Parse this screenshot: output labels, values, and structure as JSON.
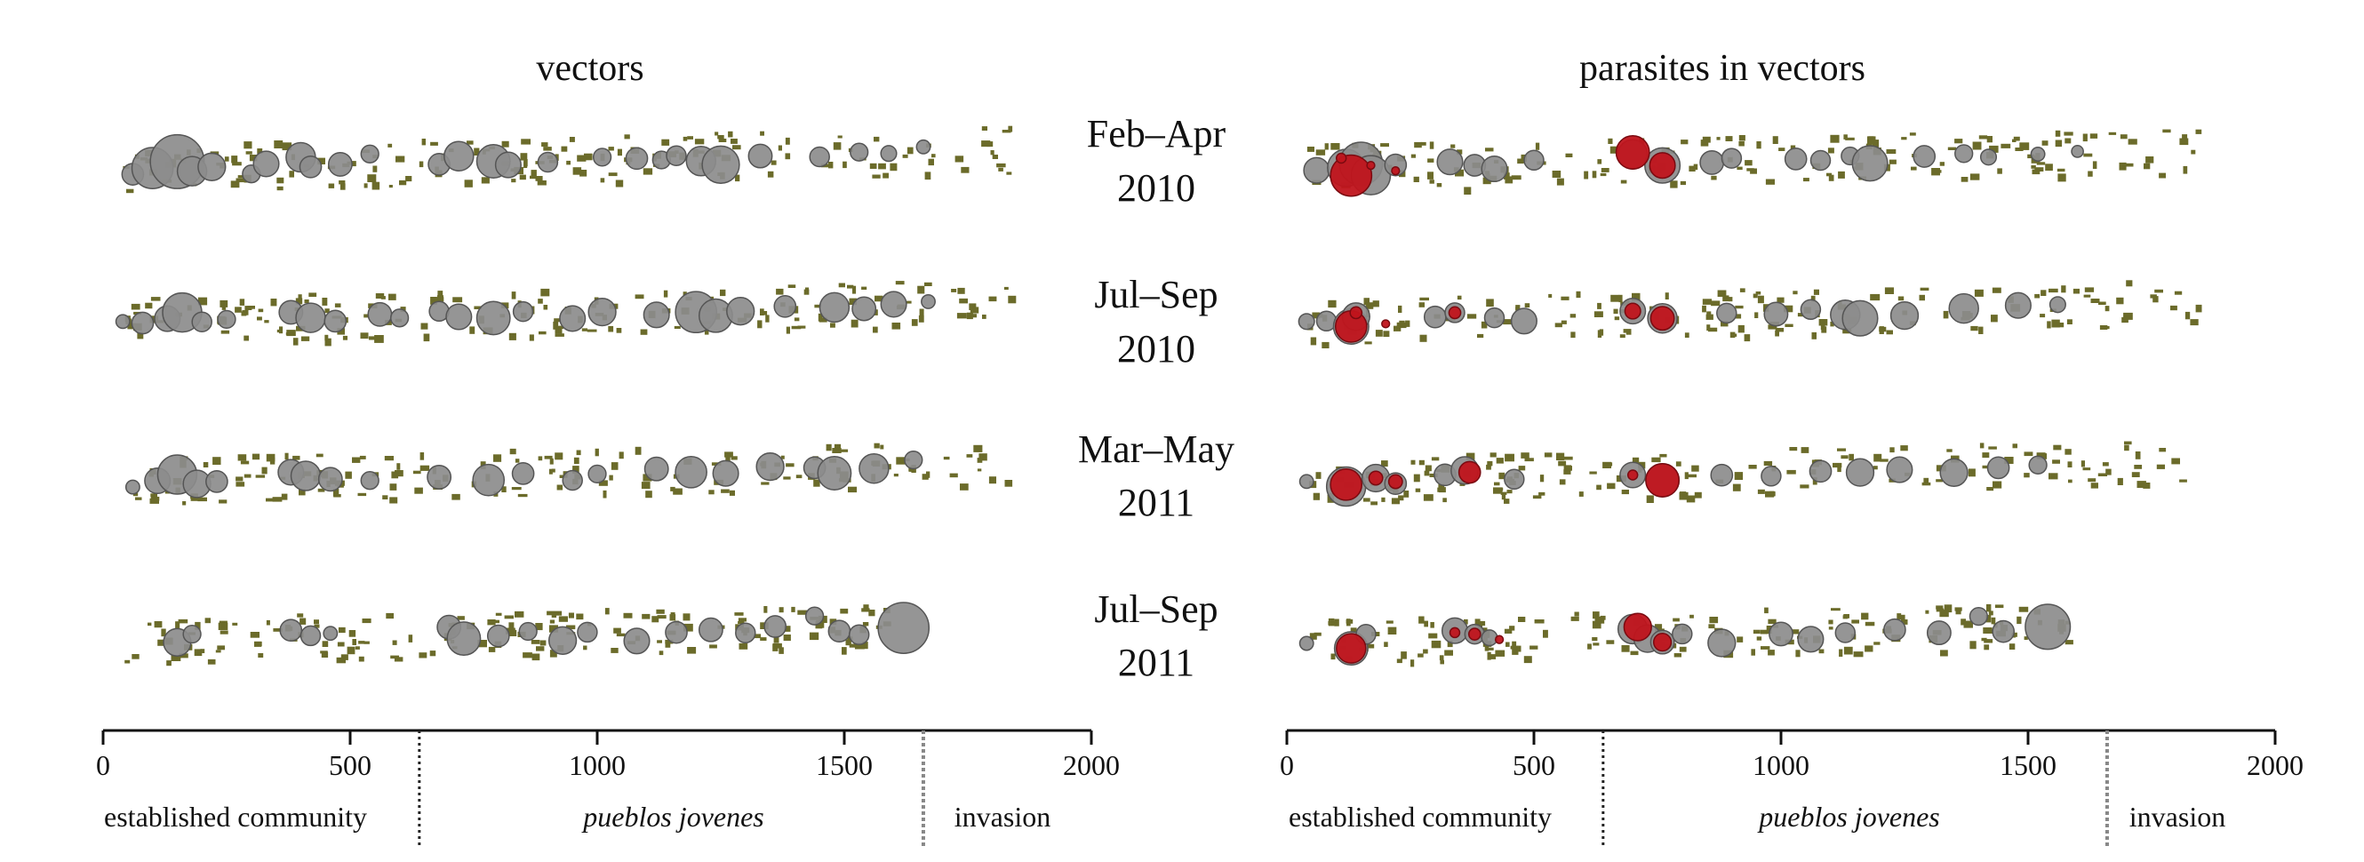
{
  "chart_data": {
    "type": "scatter",
    "description_of_marks": "bubble strip maps of households along a distance axis; grey circles = vectors, red circles = parasites in vectors, olive specks = households",
    "panels": [
      {
        "title": "vectors",
        "marker_color": "#8c8c8c"
      },
      {
        "title": "parasites in vectors",
        "marker_color": "#c0141c"
      }
    ],
    "periods": [
      {
        "line1": "Feb–Apr",
        "line2": "2010"
      },
      {
        "line1": "Jul–Sep",
        "line2": "2010"
      },
      {
        "line1": "Mar–May",
        "line2": "2011"
      },
      {
        "line1": "Jul–Sep",
        "line2": "2011"
      }
    ],
    "x_axis": {
      "ticks": [
        "0",
        "500",
        "1000",
        "1500",
        "2000"
      ],
      "range": [
        0,
        2000
      ]
    },
    "zones": [
      {
        "label": "established community",
        "italic": false
      },
      {
        "label": "pueblos jovenes",
        "italic": true
      },
      {
        "label": "invasion",
        "italic": false
      }
    ],
    "zone_boundaries": [
      640,
      1660
    ],
    "households_color": "#6b6b2a",
    "vectors": [
      [
        [
          60,
          0.4,
          22
        ],
        [
          100,
          0.1,
          42
        ],
        [
          150,
          -0.2,
          55
        ],
        [
          180,
          0.3,
          30
        ],
        [
          220,
          0.1,
          28
        ],
        [
          300,
          0.5,
          18
        ],
        [
          330,
          0.0,
          26
        ],
        [
          400,
          -0.3,
          30
        ],
        [
          420,
          0.2,
          22
        ],
        [
          480,
          0.1,
          24
        ],
        [
          540,
          -0.4,
          18
        ],
        [
          680,
          0.2,
          22
        ],
        [
          720,
          -0.2,
          30
        ],
        [
          790,
          0.1,
          34
        ],
        [
          820,
          0.3,
          26
        ],
        [
          900,
          0.2,
          20
        ],
        [
          1010,
          0.0,
          18
        ],
        [
          1080,
          0.1,
          22
        ],
        [
          1130,
          0.2,
          18
        ],
        [
          1160,
          0.0,
          20
        ],
        [
          1210,
          0.3,
          30
        ],
        [
          1250,
          0.5,
          38
        ],
        [
          1330,
          0.1,
          24
        ],
        [
          1450,
          0.2,
          20
        ],
        [
          1530,
          0.0,
          18
        ],
        [
          1590,
          0.1,
          16
        ],
        [
          1660,
          -0.2,
          14
        ]
      ],
      [
        [
          40,
          0.1,
          14
        ],
        [
          80,
          0.2,
          22
        ],
        [
          130,
          0.0,
          26
        ],
        [
          160,
          -0.3,
          40
        ],
        [
          200,
          0.2,
          20
        ],
        [
          250,
          0.1,
          18
        ],
        [
          380,
          -0.2,
          24
        ],
        [
          420,
          0.1,
          30
        ],
        [
          470,
          0.3,
          22
        ],
        [
          560,
          0.0,
          24
        ],
        [
          600,
          0.2,
          18
        ],
        [
          680,
          -0.1,
          20
        ],
        [
          720,
          0.2,
          26
        ],
        [
          790,
          0.3,
          34
        ],
        [
          850,
          0.0,
          20
        ],
        [
          950,
          0.4,
          26
        ],
        [
          1010,
          0.1,
          28
        ],
        [
          1120,
          0.3,
          26
        ],
        [
          1200,
          0.2,
          42
        ],
        [
          1240,
          0.4,
          34
        ],
        [
          1290,
          0.2,
          28
        ],
        [
          1380,
          0.0,
          22
        ],
        [
          1480,
          0.1,
          30
        ],
        [
          1540,
          0.2,
          24
        ],
        [
          1600,
          0.0,
          26
        ],
        [
          1670,
          -0.1,
          14
        ]
      ],
      [
        [
          60,
          0.4,
          14
        ],
        [
          110,
          0.1,
          26
        ],
        [
          150,
          -0.2,
          40
        ],
        [
          190,
          0.3,
          28
        ],
        [
          230,
          0.2,
          22
        ],
        [
          380,
          -0.2,
          26
        ],
        [
          410,
          0.0,
          30
        ],
        [
          460,
          0.2,
          24
        ],
        [
          540,
          0.3,
          18
        ],
        [
          680,
          0.2,
          24
        ],
        [
          780,
          0.4,
          32
        ],
        [
          850,
          0.1,
          22
        ],
        [
          950,
          0.5,
          20
        ],
        [
          1000,
          0.2,
          18
        ],
        [
          1120,
          0.0,
          24
        ],
        [
          1190,
          0.2,
          32
        ],
        [
          1260,
          0.3,
          26
        ],
        [
          1350,
          0.0,
          28
        ],
        [
          1440,
          0.1,
          22
        ],
        [
          1480,
          0.4,
          34
        ],
        [
          1560,
          0.2,
          30
        ],
        [
          1640,
          -0.2,
          18
        ]
      ],
      [
        [
          150,
          0.2,
          28
        ],
        [
          180,
          -0.2,
          18
        ],
        [
          380,
          -0.3,
          22
        ],
        [
          420,
          0.0,
          20
        ],
        [
          460,
          -0.1,
          14
        ],
        [
          700,
          -0.3,
          24
        ],
        [
          730,
          0.3,
          34
        ],
        [
          800,
          0.2,
          22
        ],
        [
          860,
          0.0,
          18
        ],
        [
          930,
          0.5,
          28
        ],
        [
          980,
          0.1,
          20
        ],
        [
          1080,
          0.6,
          26
        ],
        [
          1160,
          0.2,
          22
        ],
        [
          1230,
          0.1,
          24
        ],
        [
          1300,
          0.3,
          20
        ],
        [
          1360,
          0.0,
          22
        ],
        [
          1440,
          -0.5,
          18
        ],
        [
          1490,
          0.3,
          22
        ],
        [
          1530,
          0.5,
          20
        ],
        [
          1620,
          0.2,
          52
        ]
      ]
    ],
    "parasites": [
      [
        [
          60,
          0.2,
          26
        ],
        [
          120,
          0.1,
          38
        ],
        [
          150,
          -0.1,
          44
        ],
        [
          170,
          0.5,
          40
        ],
        [
          220,
          0.0,
          22
        ],
        [
          330,
          -0.1,
          26
        ],
        [
          380,
          0.1,
          22
        ],
        [
          420,
          0.3,
          26
        ],
        [
          500,
          -0.1,
          20
        ],
        [
          700,
          -0.3,
          30
        ],
        [
          760,
          0.3,
          36
        ],
        [
          860,
          0.2,
          24
        ],
        [
          900,
          0.0,
          20
        ],
        [
          1030,
          0.1,
          22
        ],
        [
          1080,
          0.2,
          20
        ],
        [
          1140,
          0.0,
          18
        ],
        [
          1180,
          0.4,
          36
        ],
        [
          1290,
          0.1,
          22
        ],
        [
          1370,
          0.0,
          18
        ],
        [
          1420,
          0.2,
          16
        ],
        [
          1520,
          0.1,
          14
        ],
        [
          1600,
          0.0,
          12
        ]
      ],
      [
        [
          40,
          0.1,
          16
        ],
        [
          80,
          0.1,
          20
        ],
        [
          130,
          0.4,
          36
        ],
        [
          140,
          -0.1,
          28
        ],
        [
          300,
          0.0,
          22
        ],
        [
          340,
          -0.2,
          20
        ],
        [
          420,
          0.1,
          20
        ],
        [
          480,
          0.3,
          26
        ],
        [
          700,
          -0.1,
          26
        ],
        [
          760,
          0.3,
          30
        ],
        [
          890,
          0.1,
          20
        ],
        [
          990,
          0.2,
          24
        ],
        [
          1060,
          0.0,
          20
        ],
        [
          1130,
          0.3,
          30
        ],
        [
          1160,
          0.5,
          36
        ],
        [
          1250,
          0.4,
          28
        ],
        [
          1370,
          0.1,
          30
        ],
        [
          1480,
          0.0,
          26
        ],
        [
          1560,
          0.0,
          16
        ]
      ],
      [
        [
          40,
          0.1,
          14
        ],
        [
          120,
          0.4,
          40
        ],
        [
          180,
          0.0,
          28
        ],
        [
          220,
          0.3,
          22
        ],
        [
          320,
          -0.1,
          22
        ],
        [
          360,
          -0.3,
          28
        ],
        [
          460,
          0.2,
          20
        ],
        [
          700,
          0.1,
          26
        ],
        [
          760,
          0.4,
          34
        ],
        [
          880,
          0.2,
          22
        ],
        [
          980,
          0.3,
          20
        ],
        [
          1080,
          0.1,
          22
        ],
        [
          1160,
          0.2,
          28
        ],
        [
          1240,
          0.1,
          26
        ],
        [
          1350,
          0.3,
          28
        ],
        [
          1440,
          0.1,
          22
        ],
        [
          1520,
          0.0,
          18
        ]
      ],
      [
        [
          40,
          0.2,
          14
        ],
        [
          130,
          0.5,
          34
        ],
        [
          160,
          -0.2,
          20
        ],
        [
          340,
          -0.3,
          26
        ],
        [
          380,
          -0.1,
          20
        ],
        [
          410,
          0.1,
          16
        ],
        [
          700,
          -0.2,
          30
        ],
        [
          730,
          0.3,
          28
        ],
        [
          760,
          0.5,
          24
        ],
        [
          800,
          0.1,
          20
        ],
        [
          880,
          0.6,
          28
        ],
        [
          1000,
          0.2,
          24
        ],
        [
          1060,
          0.5,
          26
        ],
        [
          1130,
          0.2,
          20
        ],
        [
          1230,
          0.1,
          22
        ],
        [
          1320,
          0.3,
          24
        ],
        [
          1400,
          -0.5,
          18
        ],
        [
          1450,
          0.3,
          22
        ],
        [
          1540,
          0.1,
          46
        ]
      ]
    ],
    "red_overlays": [
      [
        [
          130,
          0.5,
          42
        ],
        [
          110,
          -0.4,
          10
        ],
        [
          700,
          -0.4,
          34
        ],
        [
          760,
          0.3,
          26
        ],
        [
          170,
          0.0,
          8
        ],
        [
          220,
          0.3,
          8
        ]
      ],
      [
        [
          130,
          0.4,
          32
        ],
        [
          140,
          -0.3,
          12
        ],
        [
          340,
          -0.2,
          12
        ],
        [
          700,
          -0.1,
          16
        ],
        [
          760,
          0.3,
          24
        ],
        [
          200,
          0.3,
          8
        ]
      ],
      [
        [
          120,
          0.3,
          32
        ],
        [
          180,
          0.0,
          14
        ],
        [
          220,
          0.2,
          14
        ],
        [
          370,
          -0.2,
          22
        ],
        [
          760,
          0.4,
          34
        ],
        [
          700,
          0.1,
          10
        ]
      ],
      [
        [
          130,
          0.5,
          30
        ],
        [
          380,
          -0.1,
          12
        ],
        [
          340,
          -0.2,
          10
        ],
        [
          710,
          -0.3,
          28
        ],
        [
          760,
          0.5,
          18
        ],
        [
          430,
          0.2,
          8
        ]
      ]
    ]
  }
}
